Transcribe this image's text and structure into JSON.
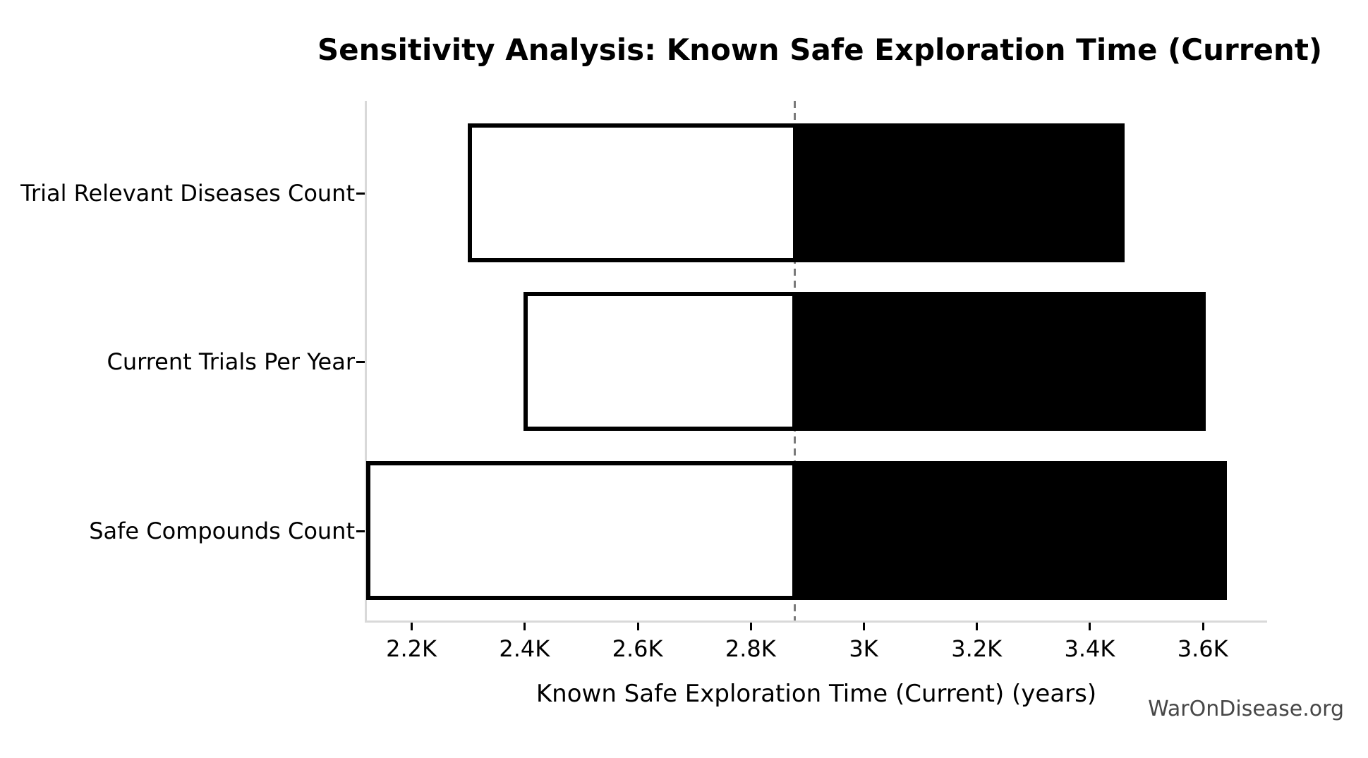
{
  "page": {
    "watermark": "WarOnDisease.org",
    "background": "#ffffff"
  },
  "chart_data": {
    "type": "bar",
    "subtype": "tornado-sensitivity",
    "orientation": "horizontal",
    "title": "Sensitivity Analysis: Known Safe Exploration Time (Current)",
    "xlabel": "Known Safe Exploration Time (Current) (years)",
    "ylabel": "",
    "categories": [
      "Trial Relevant Diseases Count",
      "Current Trials Per Year",
      "Safe Compounds Count"
    ],
    "baseline": 2878,
    "series": [
      {
        "name": "low-value-bar",
        "fill": "#ffffff",
        "edge": "#000000",
        "values": [
          2303,
          2402,
          2124
        ]
      },
      {
        "name": "high-value-bar",
        "fill": "#000000",
        "edge": "#000000",
        "values": [
          3459,
          3602,
          3640
        ]
      }
    ],
    "xlim": [
      2120,
      3714
    ],
    "xticks": {
      "values": [
        2200,
        2400,
        2600,
        2800,
        3000,
        3200,
        3400,
        3600
      ],
      "labels": [
        "2.2K",
        "2.4K",
        "2.6K",
        "2.8K",
        "3K",
        "3.2K",
        "3.4K",
        "3.6K"
      ]
    },
    "grid": false,
    "legend": "none",
    "baseline_line": {
      "style": "dashed",
      "color": "#7a7a7a"
    },
    "spine_color": "#d9d9d9",
    "tick_color": "#000000"
  }
}
